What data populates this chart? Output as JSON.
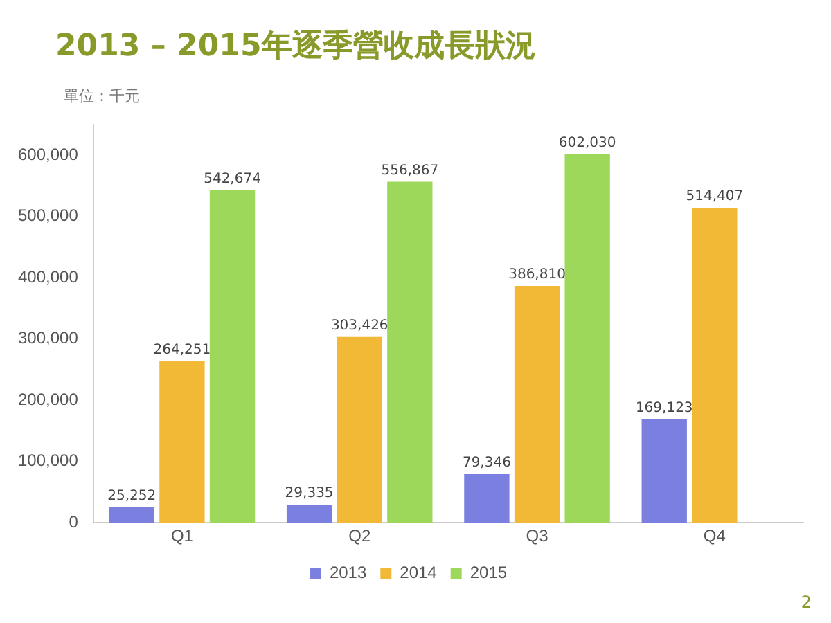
{
  "chart_data": {
    "type": "bar",
    "title": "2013 – 2015年逐季營收成長狀況",
    "ylabel": "單位：千元",
    "categories": [
      "Q1",
      "Q2",
      "Q3",
      "Q4"
    ],
    "series": [
      {
        "name": "2013",
        "color": "#7b7fe0",
        "values": [
          25252,
          29335,
          79346,
          169123
        ],
        "value_labels": [
          "25,252",
          "29,335",
          "79,346",
          "169,123"
        ]
      },
      {
        "name": "2014",
        "color": "#f2b937",
        "values": [
          264251,
          303426,
          386810,
          514407
        ],
        "value_labels": [
          "264,251",
          "303,426",
          "386,810",
          "514,407"
        ]
      },
      {
        "name": "2015",
        "color": "#9ed85a",
        "values": [
          542674,
          556867,
          602030,
          null
        ],
        "value_labels": [
          "542,674",
          "556,867",
          "602,030",
          null
        ]
      }
    ],
    "ylim": [
      0,
      650000
    ],
    "yticks": [
      {
        "value": 0,
        "label": "0"
      },
      {
        "value": 100000,
        "label": "100,000"
      },
      {
        "value": 200000,
        "label": "200,000"
      },
      {
        "value": 300000,
        "label": "300,000"
      },
      {
        "value": 400000,
        "label": "400,000"
      },
      {
        "value": 500000,
        "label": "500,000"
      },
      {
        "value": 600000,
        "label": "600,000"
      }
    ],
    "grid": false,
    "legend": "bottom",
    "annotations": [
      "2"
    ]
  }
}
